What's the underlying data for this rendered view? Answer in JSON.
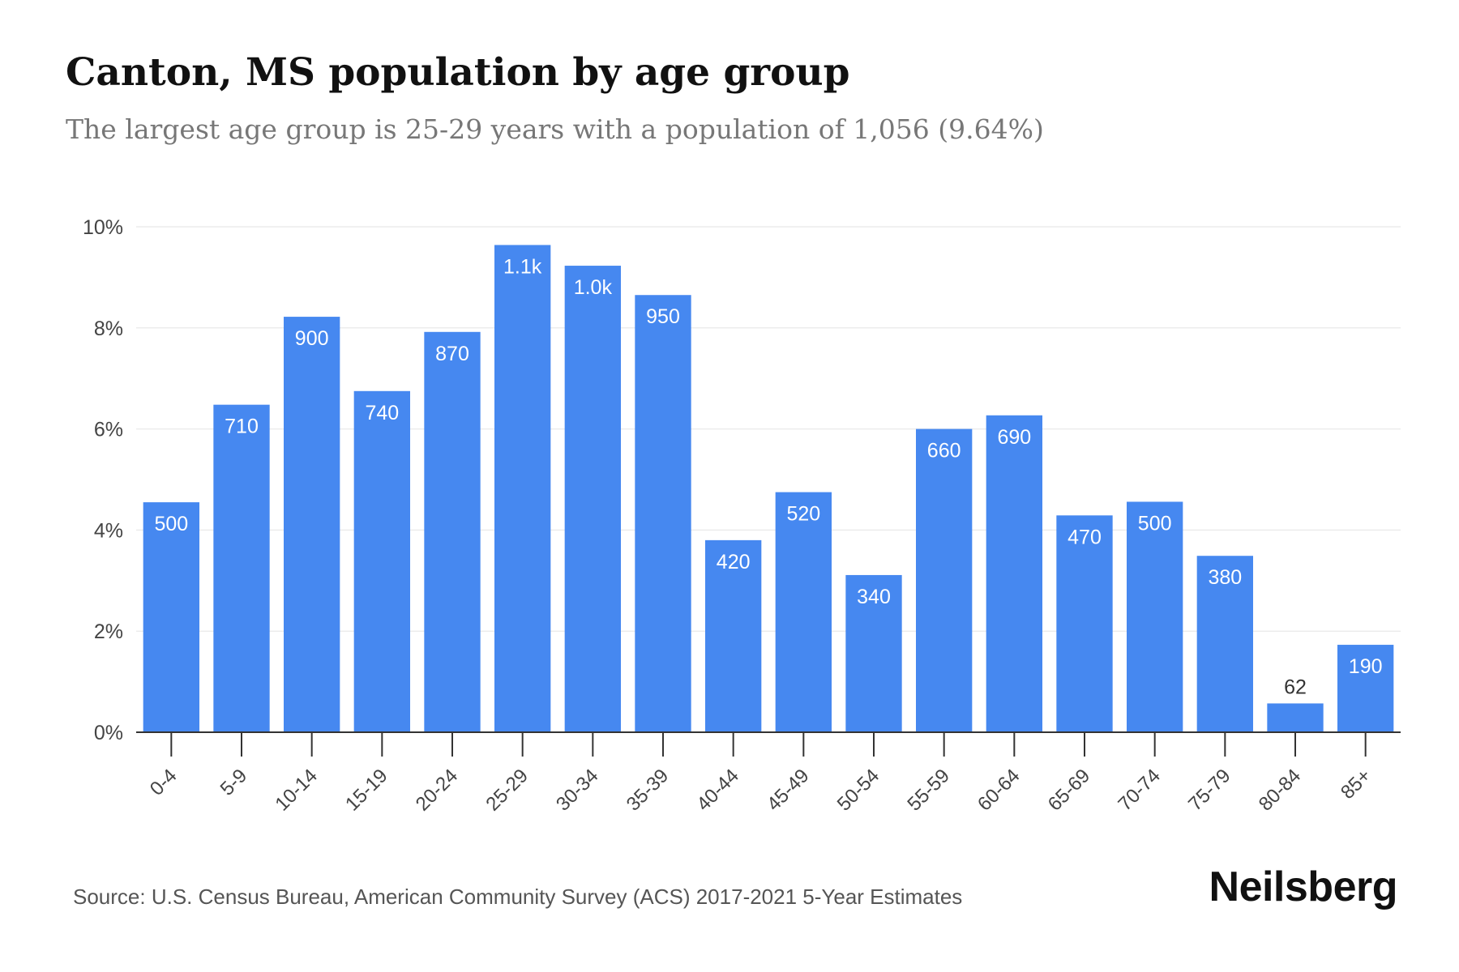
{
  "header": {
    "title": "Canton, MS population by age group",
    "subtitle": "The largest age group is 25-29 years with a population of 1,056 (9.64%)"
  },
  "footer": {
    "source": "Source: U.S. Census Bureau, American Community Survey (ACS) 2017-2021 5-Year Estimates",
    "brand": "Neilsberg"
  },
  "colors": {
    "bar": "#4688f0",
    "label_inside": "#ffffff",
    "label_outside": "#333333",
    "grid": "#ececec",
    "axis": "#333333"
  },
  "chart_data": {
    "type": "bar",
    "title": "Canton, MS population by age group",
    "subtitle": "The largest age group is 25-29 years with a population of 1,056 (9.64%)",
    "xlabel": "",
    "ylabel": "",
    "ylim": [
      0,
      10
    ],
    "yticks": [
      0,
      2,
      4,
      6,
      8,
      10
    ],
    "ytick_labels": [
      "0%",
      "2%",
      "4%",
      "6%",
      "8%",
      "10%"
    ],
    "grid": true,
    "legend": "none",
    "categories": [
      "0-4",
      "5-9",
      "10-14",
      "15-19",
      "20-24",
      "25-29",
      "30-34",
      "35-39",
      "40-44",
      "45-49",
      "50-54",
      "55-59",
      "60-64",
      "65-69",
      "70-74",
      "75-79",
      "80-84",
      "85+"
    ],
    "values": [
      4.55,
      6.48,
      8.22,
      6.75,
      7.92,
      9.64,
      9.23,
      8.65,
      3.8,
      4.75,
      3.11,
      6.0,
      6.27,
      4.29,
      4.56,
      3.49,
      0.57,
      1.73
    ],
    "data_labels": [
      "500",
      "710",
      "900",
      "740",
      "870",
      "1.1k",
      "1.0k",
      "950",
      "420",
      "520",
      "340",
      "660",
      "690",
      "470",
      "500",
      "380",
      "62",
      "190"
    ]
  }
}
